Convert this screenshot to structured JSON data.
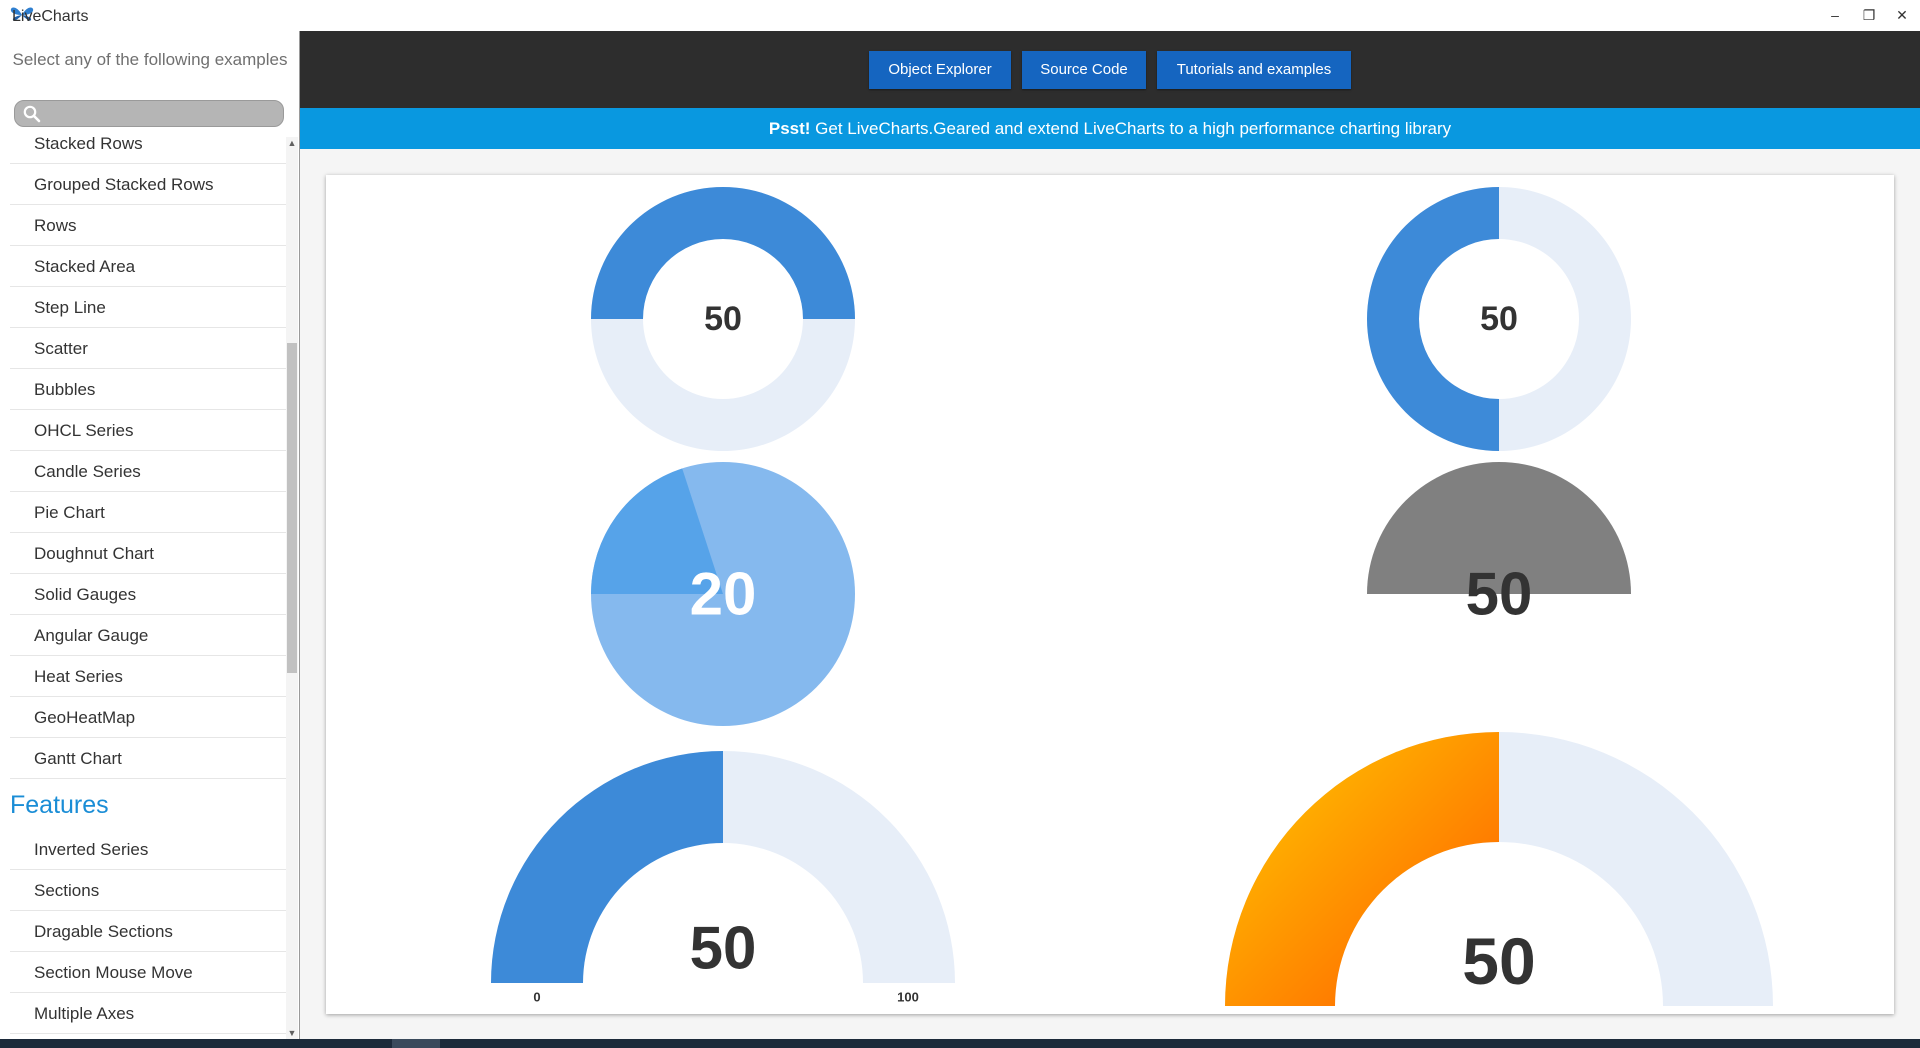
{
  "window": {
    "title": "LiveCharts",
    "minimize_glyph": "–",
    "maximize_glyph": "❐",
    "close_glyph": "✕"
  },
  "sidebar": {
    "prompt": "Select any of the following examples",
    "search": {
      "placeholder": "",
      "value": ""
    },
    "items": [
      {
        "label": "Stacked Rows"
      },
      {
        "label": "Grouped Stacked Rows"
      },
      {
        "label": "Rows"
      },
      {
        "label": "Stacked Area"
      },
      {
        "label": "Step Line"
      },
      {
        "label": "Scatter"
      },
      {
        "label": "Bubbles"
      },
      {
        "label": "OHCL Series"
      },
      {
        "label": "Candle Series"
      },
      {
        "label": "Pie Chart"
      },
      {
        "label": "Doughnut Chart"
      },
      {
        "label": "Solid Gauges"
      },
      {
        "label": "Angular Gauge"
      },
      {
        "label": "Heat Series"
      },
      {
        "label": "GeoHeatMap"
      },
      {
        "label": "Gantt Chart"
      }
    ],
    "section_header": "Features",
    "feature_items": [
      {
        "label": "Inverted Series"
      },
      {
        "label": "Sections"
      },
      {
        "label": "Dragable Sections"
      },
      {
        "label": "Section Mouse Move"
      },
      {
        "label": "Multiple Axes"
      }
    ]
  },
  "toolbar": {
    "object_explorer": "Object Explorer",
    "source_code": "Source Code",
    "tutorials": "Tutorials and examples"
  },
  "banner": {
    "bold": "Psst!",
    "text": " Get LiveCharts.Geared and extend LiveCharts to a high performance charting library"
  },
  "colors": {
    "gauge_fill": "#3d8ad8",
    "gauge_track": "#e7eef8",
    "pie_light": "#85b9ee",
    "pie_dark": "#56a3e9",
    "gray_half": "#808080",
    "orange_start": "#ffcc00",
    "orange_end": "#ff5a00",
    "banner": "#0998e0",
    "toolbar_button": "#1565c0"
  },
  "chart_data": [
    {
      "type": "gauge",
      "style": "full-circle donut, top half filled",
      "value": 50,
      "min": 0,
      "max": 100,
      "label": "50"
    },
    {
      "type": "gauge",
      "style": "full-circle donut, left half filled",
      "value": 50,
      "min": 0,
      "max": 100,
      "label": "50"
    },
    {
      "type": "pie",
      "style": "filled circle with highlighted wedge",
      "value": 20,
      "min": 0,
      "max": 100,
      "label": "20"
    },
    {
      "type": "gauge",
      "style": "solid half circle, no track",
      "value": 50,
      "min": 0,
      "max": 100,
      "label": "50"
    },
    {
      "type": "gauge",
      "style": "half circle arc with min/max labels",
      "value": 50,
      "min": 0,
      "max": 100,
      "label": "50",
      "min_label": "0",
      "max_label": "100"
    },
    {
      "type": "gauge",
      "style": "half circle arc with orange gradient fill",
      "value": 50,
      "min": 0,
      "max": 100,
      "label": "50"
    }
  ]
}
